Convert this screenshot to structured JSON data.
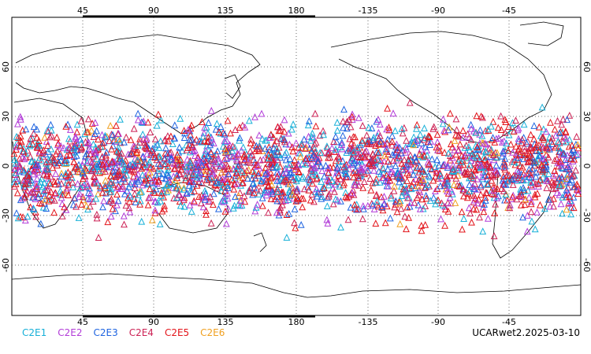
{
  "map": {
    "top_lon_labels": [
      "45",
      "90",
      "135",
      "180",
      "-135",
      "-90",
      "-45"
    ],
    "bottom_lon_labels": [
      "45",
      "90",
      "135",
      "180",
      "-135",
      "-90",
      "-45"
    ],
    "lat_labels": [
      "60",
      "30",
      "0",
      "-30",
      "-60"
    ],
    "land_color": "#ffffff",
    "coast_color": "#000000",
    "grid": "dotted",
    "marker": "open-triangle"
  },
  "legend": {
    "items": [
      {
        "label": "C2E1",
        "color": "#17b0d8"
      },
      {
        "label": "C2E2",
        "color": "#b23cd8"
      },
      {
        "label": "C2E3",
        "color": "#1f64e0"
      },
      {
        "label": "C2E4",
        "color": "#cc2255"
      },
      {
        "label": "C2E5",
        "color": "#e3141a"
      },
      {
        "label": "C2E6",
        "color": "#f0a020"
      }
    ]
  },
  "footer": {
    "label": "UCARwet2.2025-03-10"
  }
}
